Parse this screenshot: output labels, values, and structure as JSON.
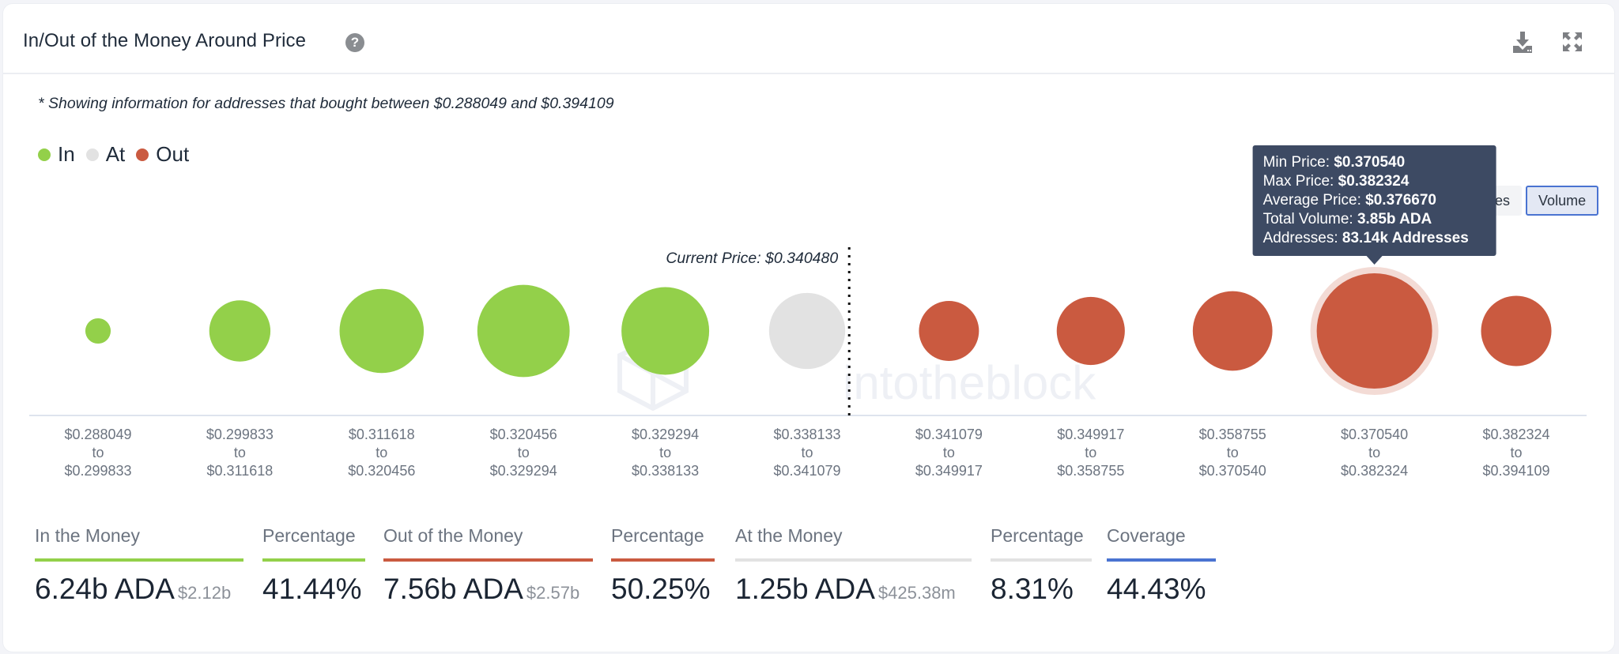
{
  "header": {
    "title": "In/Out of the Money Around Price",
    "help_icon": "question-circle-icon",
    "download_icon": "download-icon",
    "expand_icon": "expand-icon"
  },
  "note": "* Showing information for addresses that bought between $0.288049 and $0.394109",
  "legend": [
    {
      "label": "In",
      "color": "#93d04a"
    },
    {
      "label": "At",
      "color": "#e2e2e2"
    },
    {
      "label": "Out",
      "color": "#ca5a40"
    }
  ],
  "toggle": {
    "options": [
      "Addresses",
      "Volume"
    ],
    "selected": "Volume"
  },
  "watermark": "intotheblock",
  "chart_data": {
    "type": "bubble",
    "title": "In/Out of the Money Around Price",
    "current_price_label": "Current Price: $0.340480",
    "current_price": 0.34048,
    "size_metric": "Volume",
    "categories": [
      {
        "min": "$0.288049",
        "max": "$0.299833",
        "status": "In",
        "relative_size": 0.22
      },
      {
        "min": "$0.299833",
        "max": "$0.311618",
        "status": "In",
        "relative_size": 0.53
      },
      {
        "min": "$0.311618",
        "max": "$0.320456",
        "status": "In",
        "relative_size": 0.73
      },
      {
        "min": "$0.320456",
        "max": "$0.329294",
        "status": "In",
        "relative_size": 0.8
      },
      {
        "min": "$0.329294",
        "max": "$0.338133",
        "status": "In",
        "relative_size": 0.76
      },
      {
        "min": "$0.338133",
        "max": "$0.341079",
        "status": "At",
        "relative_size": 0.66
      },
      {
        "min": "$0.341079",
        "max": "$0.349917",
        "status": "Out",
        "relative_size": 0.52
      },
      {
        "min": "$0.349917",
        "max": "$0.358755",
        "status": "Out",
        "relative_size": 0.59
      },
      {
        "min": "$0.358755",
        "max": "$0.370540",
        "status": "Out",
        "relative_size": 0.69
      },
      {
        "min": "$0.370540",
        "max": "$0.382324",
        "status": "Out",
        "relative_size": 1.0
      },
      {
        "min": "$0.382324",
        "max": "$0.394109",
        "status": "Out",
        "relative_size": 0.61
      }
    ],
    "range_connector": "to",
    "tooltip": {
      "bin_index": 9,
      "rows": [
        {
          "label": "Min Price:",
          "value": "$0.370540"
        },
        {
          "label": "Max Price:",
          "value": "$0.382324"
        },
        {
          "label": "Average Price:",
          "value": "$0.376670"
        },
        {
          "label": "Total Volume:",
          "value": "3.85b ADA"
        },
        {
          "label": "Addresses:",
          "value": "83.14k Addresses"
        }
      ]
    }
  },
  "stats": [
    {
      "label": "In the Money",
      "value": "6.24b ADA",
      "sub": "$2.12b",
      "bar_color": "#93d04a"
    },
    {
      "label": "Percentage",
      "value": "41.44%",
      "sub": "",
      "bar_color": "#93d04a"
    },
    {
      "label": "Out of the Money",
      "value": "7.56b ADA",
      "sub": "$2.57b",
      "bar_color": "#ca5a40"
    },
    {
      "label": "Percentage",
      "value": "50.25%",
      "sub": "",
      "bar_color": "#ca5a40"
    },
    {
      "label": "At the Money",
      "value": "1.25b ADA",
      "sub": "$425.38m",
      "bar_color": "#e2e2e2"
    },
    {
      "label": "Percentage",
      "value": "8.31%",
      "sub": "",
      "bar_color": "#e2e2e2"
    },
    {
      "label": "Coverage",
      "value": "44.43%",
      "sub": "",
      "bar_color": "#4a73d1"
    }
  ]
}
